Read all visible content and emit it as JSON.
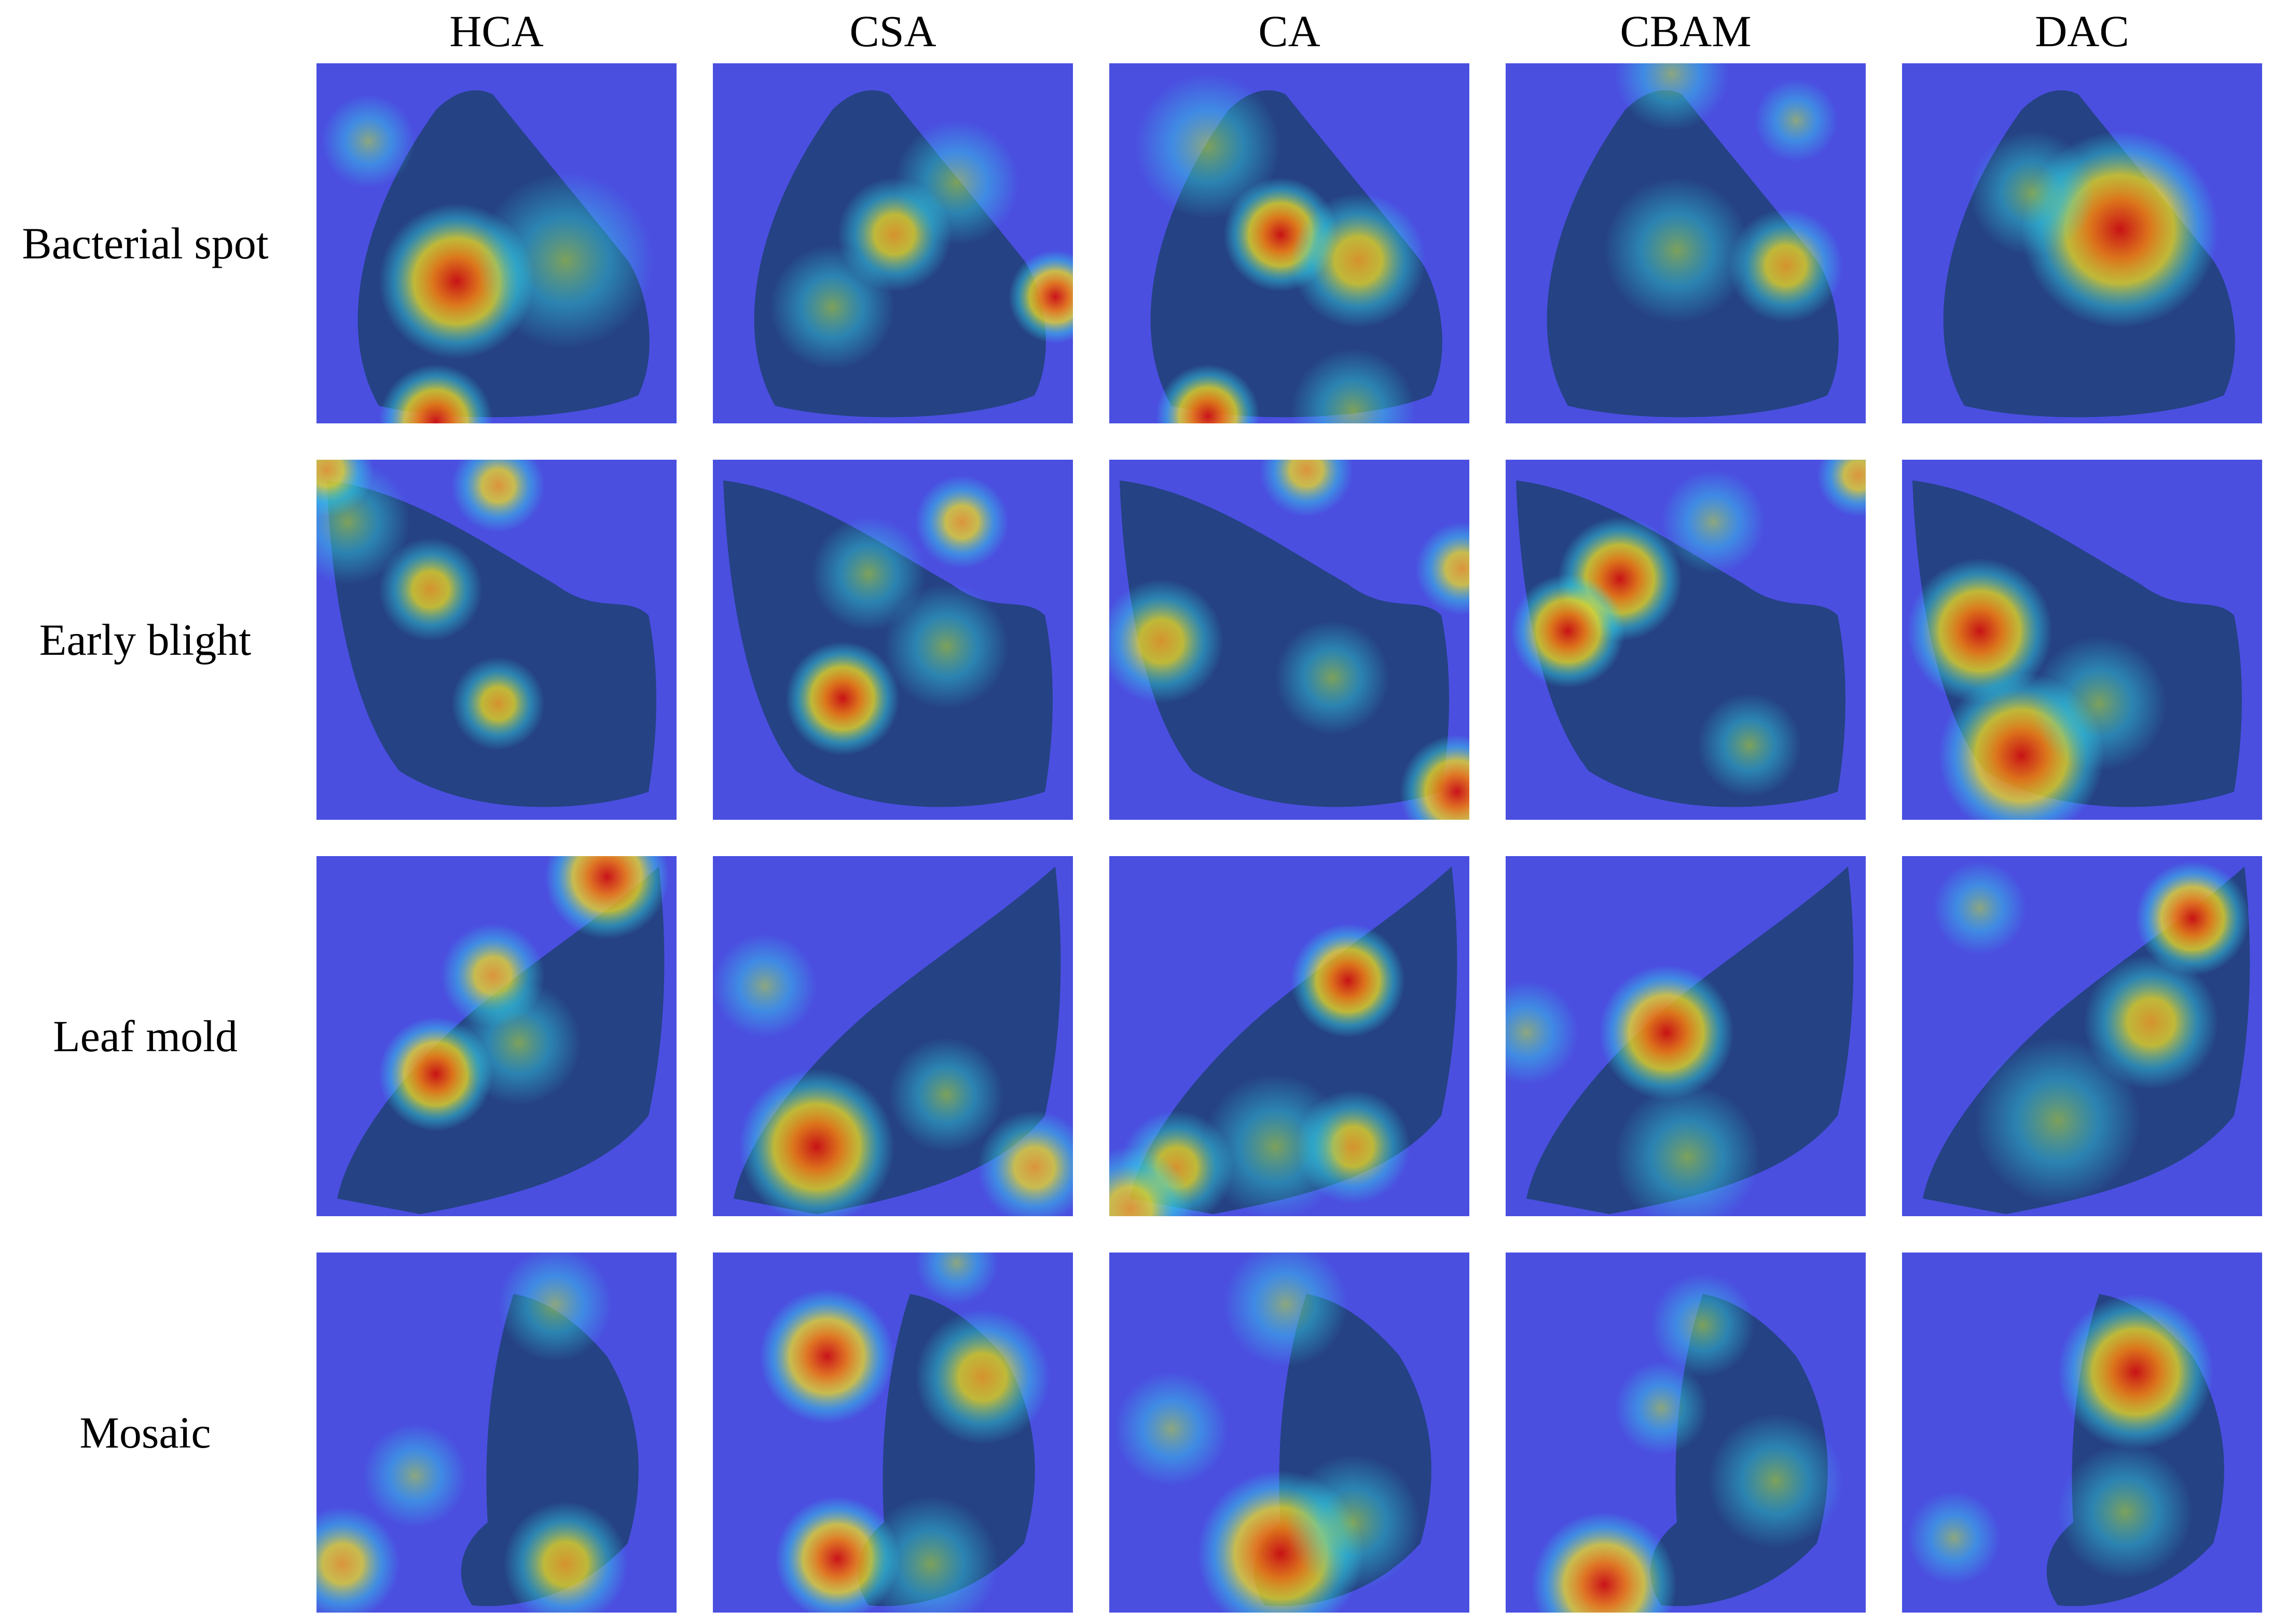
{
  "columns": [
    "HCA",
    "CSA",
    "CA",
    "CBAM",
    "DAC"
  ],
  "rows": [
    "Bacterial spot",
    "Early blight",
    "Leaf mold",
    "Mosaic"
  ],
  "colors": {
    "background_blue": "#4a4fe0",
    "leaf_dark": "#1f3f73",
    "heat_red": "#d01010",
    "heat_yellow": "#f2e020",
    "heat_cyan": "#33d3e8"
  }
}
